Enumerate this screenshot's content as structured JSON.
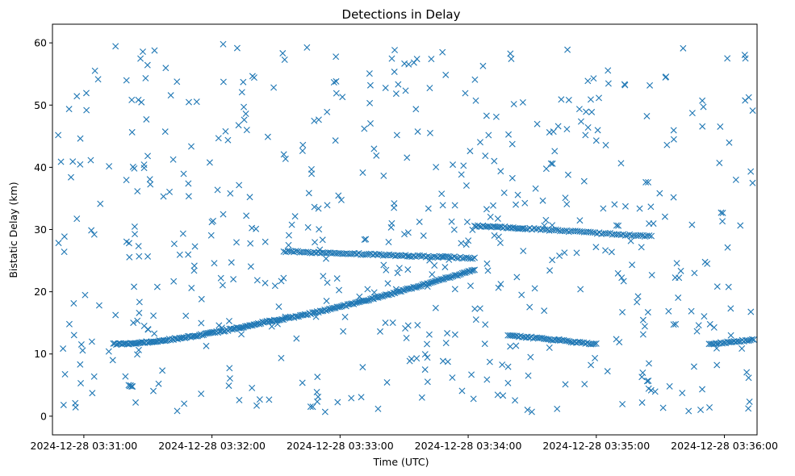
{
  "chart_data": {
    "type": "scatter",
    "title": "Detections in Delay",
    "xlabel": "Time (UTC)",
    "ylabel": "Bistatic Delay (km)",
    "x_unit": "time of day (UTC), minutes after 2024-12-28 03:30:00",
    "xlim": [
      0.755,
      6.255
    ],
    "ylim": [
      -3.0,
      63.0
    ],
    "x_ticks": [
      {
        "value": 1,
        "label": "2024-12-28 03:31:00"
      },
      {
        "value": 2,
        "label": "2024-12-28 03:32:00"
      },
      {
        "value": 3,
        "label": "2024-12-28 03:33:00"
      },
      {
        "value": 4,
        "label": "2024-12-28 03:34:00"
      },
      {
        "value": 5,
        "label": "2024-12-28 03:35:00"
      },
      {
        "value": 6,
        "label": "2024-12-28 03:36:00"
      }
    ],
    "y_ticks": [
      0,
      10,
      20,
      30,
      40,
      50,
      60
    ],
    "grid": false,
    "marker": "x",
    "color": "#1f77b4",
    "series": [
      {
        "name": "",
        "tracks": [
          {
            "x_start": 1.23,
            "x_end": 2.45,
            "y_start": 11.6,
            "y_end": 15.3,
            "curve": 1.6,
            "count": 110
          },
          {
            "x_start": 2.45,
            "x_end": 4.05,
            "y_start": 15.3,
            "y_end": 23.5,
            "curve": 1.2,
            "count": 135
          },
          {
            "x_start": 2.56,
            "x_end": 4.05,
            "y_start": 26.5,
            "y_end": 25.4,
            "curve": 1.0,
            "count": 95
          },
          {
            "x_start": 4.05,
            "x_end": 4.43,
            "y_start": 30.6,
            "y_end": 30.2,
            "curve": 1.0,
            "count": 30
          },
          {
            "x_start": 4.43,
            "x_end": 5.43,
            "y_start": 30.2,
            "y_end": 28.9,
            "curve": 1.0,
            "count": 60
          },
          {
            "x_start": 4.31,
            "x_end": 5.0,
            "y_start": 13.0,
            "y_end": 11.6,
            "curve": 1.0,
            "count": 50
          },
          {
            "x_start": 5.88,
            "x_end": 6.23,
            "y_start": 11.6,
            "y_end": 12.3,
            "curve": 1.0,
            "count": 28
          },
          {
            "x_start": 1.35,
            "x_end": 1.38,
            "y_start": 4.9,
            "y_end": 4.9,
            "curve": 1.0,
            "count": 5
          }
        ],
        "clutter": {
          "x_range": [
            0.79,
            6.23
          ],
          "y_range": [
            0.5,
            60.0
          ],
          "count": 560
        }
      }
    ]
  }
}
